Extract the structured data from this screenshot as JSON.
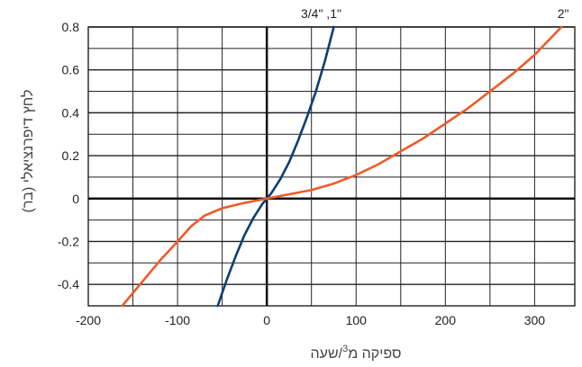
{
  "chart_data": {
    "type": "line",
    "xlabel": "ספיקה מ",
    "xlabel_sup": "3",
    "xlabel_suffix": "/שעה",
    "ylabel": "לחץ דיפרנציאלי (בר)",
    "xlim": [
      -200,
      345
    ],
    "ylim": [
      -0.5,
      0.8
    ],
    "x_ticks": [
      -200,
      -100,
      0,
      100,
      200,
      300
    ],
    "x_tick_labels": [
      "-200",
      "-100",
      "0",
      "100",
      "200",
      "300"
    ],
    "y_ticks": [
      -0.4,
      -0.2,
      0,
      0.2,
      0.4,
      0.6,
      0.8
    ],
    "y_tick_labels": [
      "-0.4",
      "-0.2",
      "0",
      "0.2",
      "0.4",
      "0.6",
      "0.8"
    ],
    "grid": true,
    "series": [
      {
        "name": "3/4\" ,1\"",
        "color": "#0a3f73",
        "points": [
          [
            -55,
            -0.5
          ],
          [
            -45,
            -0.38
          ],
          [
            -35,
            -0.27
          ],
          [
            -25,
            -0.17
          ],
          [
            -15,
            -0.09
          ],
          [
            -5,
            -0.025
          ],
          [
            0,
            0
          ],
          [
            5,
            0.025
          ],
          [
            15,
            0.09
          ],
          [
            25,
            0.17
          ],
          [
            35,
            0.27
          ],
          [
            45,
            0.38
          ],
          [
            55,
            0.5
          ],
          [
            65,
            0.64
          ],
          [
            75,
            0.8
          ]
        ]
      },
      {
        "name": "2\"",
        "color": "#f05a28",
        "points": [
          [
            -162,
            -0.5
          ],
          [
            -140,
            -0.39
          ],
          [
            -120,
            -0.29
          ],
          [
            -100,
            -0.2
          ],
          [
            -85,
            -0.13
          ],
          [
            -70,
            -0.08
          ],
          [
            -50,
            -0.045
          ],
          [
            -25,
            -0.02
          ],
          [
            0,
            0
          ],
          [
            25,
            0.02
          ],
          [
            50,
            0.04
          ],
          [
            75,
            0.07
          ],
          [
            100,
            0.11
          ],
          [
            125,
            0.16
          ],
          [
            150,
            0.22
          ],
          [
            175,
            0.28
          ],
          [
            200,
            0.35
          ],
          [
            225,
            0.42
          ],
          [
            250,
            0.5
          ],
          [
            275,
            0.58
          ],
          [
            300,
            0.67
          ],
          [
            330,
            0.8
          ]
        ]
      }
    ]
  }
}
